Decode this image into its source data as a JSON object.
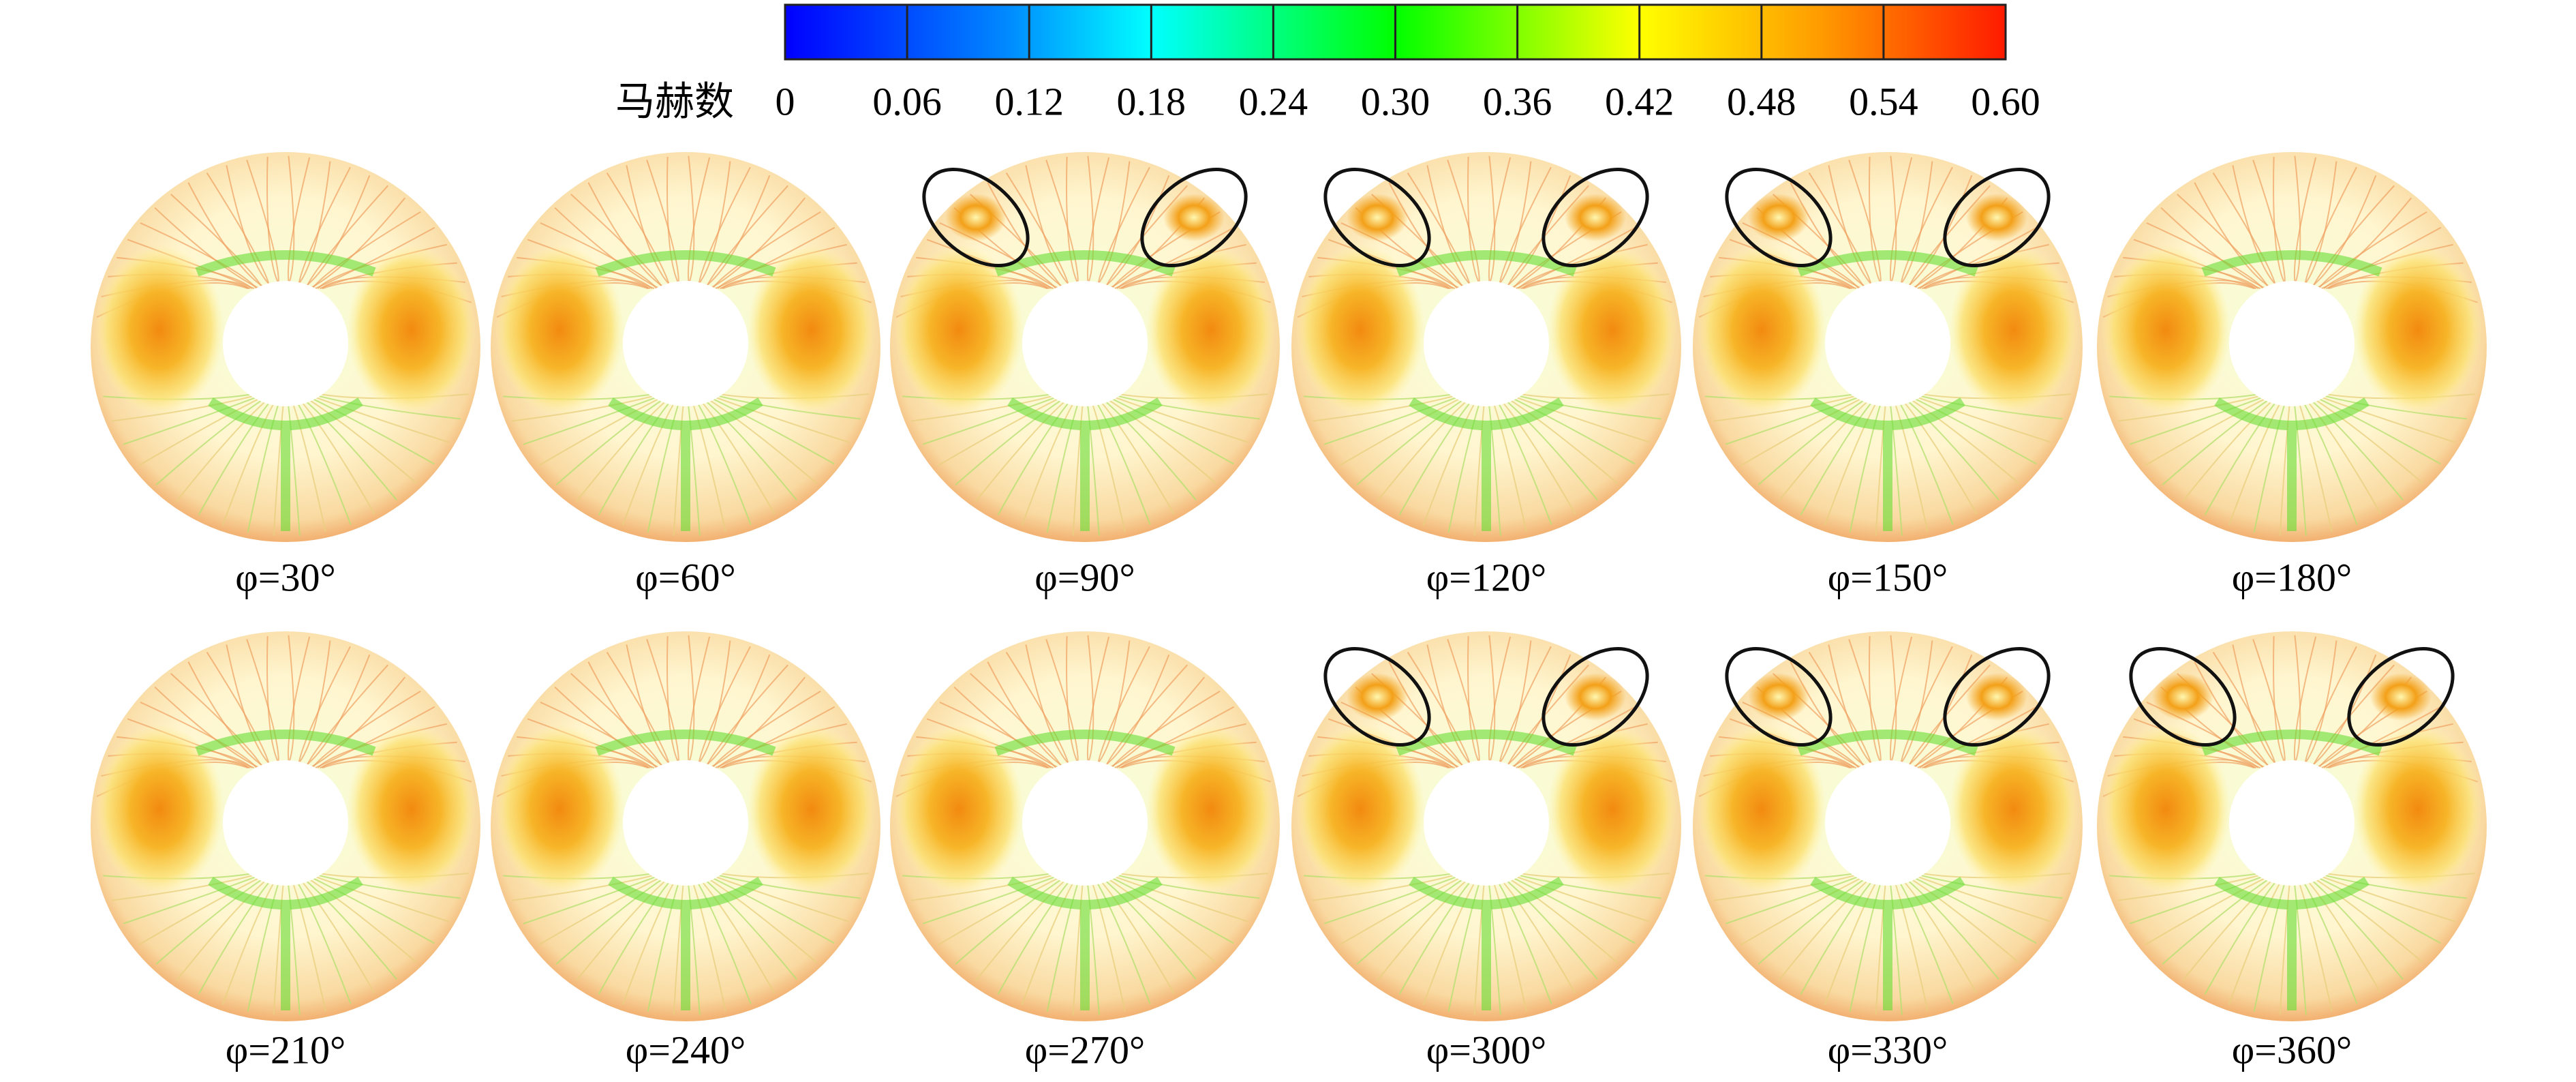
{
  "colorbar": {
    "title": "马赫数",
    "range": [
      0,
      0.6
    ],
    "ticks": [
      {
        "value": 0,
        "label": "0"
      },
      {
        "value": 0.06,
        "label": "0.06"
      },
      {
        "value": 0.12,
        "label": "0.12"
      },
      {
        "value": 0.18,
        "label": "0.18"
      },
      {
        "value": 0.24,
        "label": "0.24"
      },
      {
        "value": 0.3,
        "label": "0.30"
      },
      {
        "value": 0.36,
        "label": "0.36"
      },
      {
        "value": 0.42,
        "label": "0.42"
      },
      {
        "value": 0.48,
        "label": "0.48"
      },
      {
        "value": 0.54,
        "label": "0.54"
      },
      {
        "value": 0.6,
        "label": "0.60"
      }
    ]
  },
  "panels": [
    {
      "label": "φ=30°"
    },
    {
      "label": "φ=60°"
    },
    {
      "label": "φ=90°"
    },
    {
      "label": "φ=120°"
    },
    {
      "label": "φ=150°"
    },
    {
      "label": "φ=180°"
    },
    {
      "label": "φ=210°"
    },
    {
      "label": "φ=240°"
    },
    {
      "label": "φ=270°"
    },
    {
      "label": "φ=300°"
    },
    {
      "label": "φ=330°"
    },
    {
      "label": "φ=360°"
    }
  ]
}
